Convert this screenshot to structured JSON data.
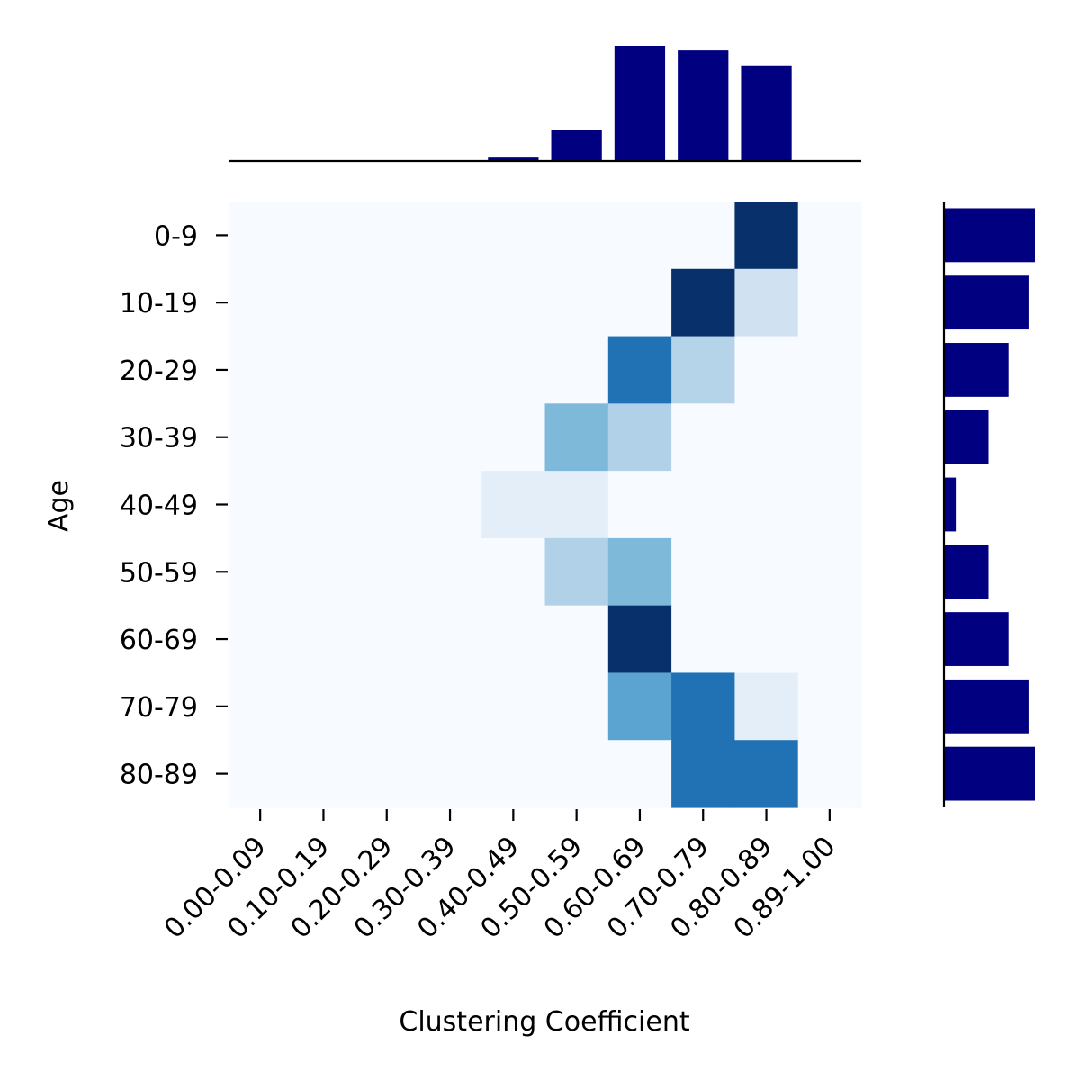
{
  "chart_data": {
    "type": "heatmap",
    "title": "",
    "xlabel": "Clustering Coefficient",
    "ylabel": "Age",
    "x_categories": [
      "0.00-0.09",
      "0.10-0.19",
      "0.20-0.29",
      "0.30-0.39",
      "0.40-0.49",
      "0.50-0.59",
      "0.60-0.69",
      "0.70-0.79",
      "0.80-0.89",
      "0.89-1.00"
    ],
    "y_categories": [
      "0-9",
      "10-19",
      "20-29",
      "30-39",
      "40-49",
      "50-59",
      "60-69",
      "70-79",
      "80-89"
    ],
    "colormap": "Blues",
    "values": [
      [
        0,
        0,
        0,
        0,
        0,
        0,
        0,
        0,
        1.0,
        0
      ],
      [
        0,
        0,
        0,
        0,
        0,
        0,
        0,
        1.0,
        0.2,
        0
      ],
      [
        0,
        0,
        0,
        0,
        0,
        0,
        0.75,
        0.3,
        0,
        0
      ],
      [
        0,
        0,
        0,
        0,
        0,
        0.45,
        0.32,
        0,
        0,
        0
      ],
      [
        0,
        0,
        0,
        0,
        0.1,
        0.1,
        0,
        0,
        0,
        0
      ],
      [
        0,
        0,
        0,
        0,
        0,
        0.32,
        0.45,
        0,
        0,
        0
      ],
      [
        0,
        0,
        0,
        0,
        0,
        0,
        1.0,
        0,
        0,
        0
      ],
      [
        0,
        0,
        0,
        0,
        0,
        0,
        0.55,
        0.75,
        0.1,
        0
      ],
      [
        0,
        0,
        0,
        0,
        0,
        0,
        0,
        0.75,
        0.75,
        0
      ]
    ],
    "top_marginal": {
      "type": "bar",
      "color": "#000080",
      "values": [
        0,
        0,
        0,
        0,
        0.03,
        0.27,
        1.0,
        0.96,
        0.83,
        0
      ]
    },
    "right_marginal": {
      "type": "bar",
      "color": "#000080",
      "values": [
        1.0,
        0.93,
        0.71,
        0.49,
        0.13,
        0.49,
        0.71,
        0.93,
        1.0
      ]
    }
  }
}
